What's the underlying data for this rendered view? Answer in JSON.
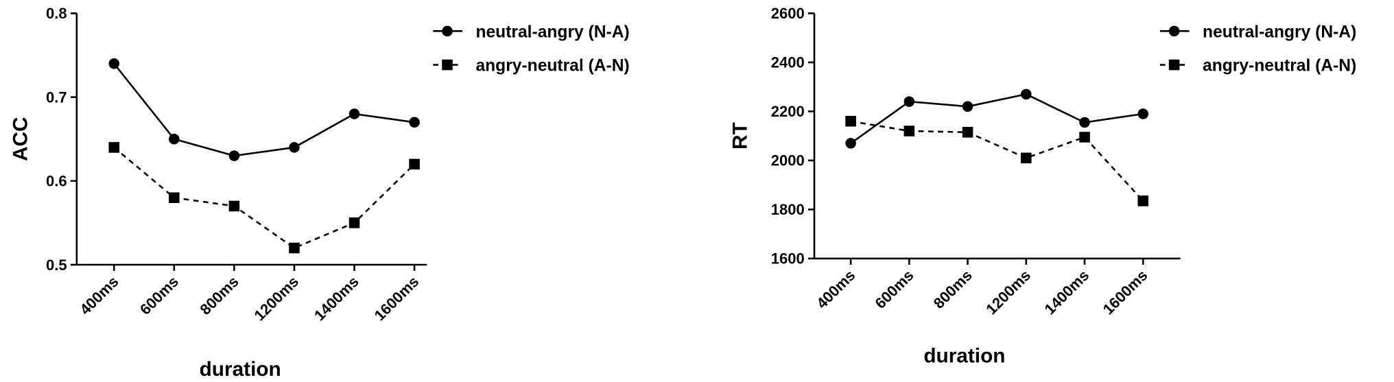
{
  "chart_data": [
    {
      "type": "line",
      "x_label": "duration",
      "y_label": "ACC",
      "categories": [
        "400ms",
        "600ms",
        "800ms",
        "1200ms",
        "1400ms",
        "1600ms"
      ],
      "ylim": [
        0.5,
        0.8
      ],
      "yticks": [
        0.5,
        0.6,
        0.7,
        0.8
      ],
      "series": [
        {
          "name": "neutral-angry (N-A)",
          "color": "#000000",
          "linestyle": "solid",
          "marker": "circle",
          "values": [
            0.74,
            0.65,
            0.63,
            0.64,
            0.68,
            0.67
          ]
        },
        {
          "name": "angry-neutral (A-N)",
          "color": "#000000",
          "linestyle": "dashed",
          "marker": "square",
          "values": [
            0.64,
            0.58,
            0.57,
            0.52,
            0.55,
            0.62
          ]
        }
      ]
    },
    {
      "type": "line",
      "x_label": "duration",
      "y_label": "RT",
      "categories": [
        "400ms",
        "600ms",
        "800ms",
        "1200ms",
        "1400ms",
        "1600ms"
      ],
      "ylim": [
        1600,
        2600
      ],
      "yticks": [
        1600,
        1800,
        2000,
        2200,
        2400,
        2600
      ],
      "series": [
        {
          "name": "neutral-angry (N-A)",
          "color": "#000000",
          "linestyle": "solid",
          "marker": "circle",
          "values": [
            2070,
            2240,
            2220,
            2270,
            2155,
            2190
          ]
        },
        {
          "name": "angry-neutral (A-N)",
          "color": "#000000",
          "linestyle": "dashed",
          "marker": "square",
          "values": [
            2160,
            2120,
            2115,
            2010,
            2095,
            1835
          ]
        }
      ]
    }
  ]
}
